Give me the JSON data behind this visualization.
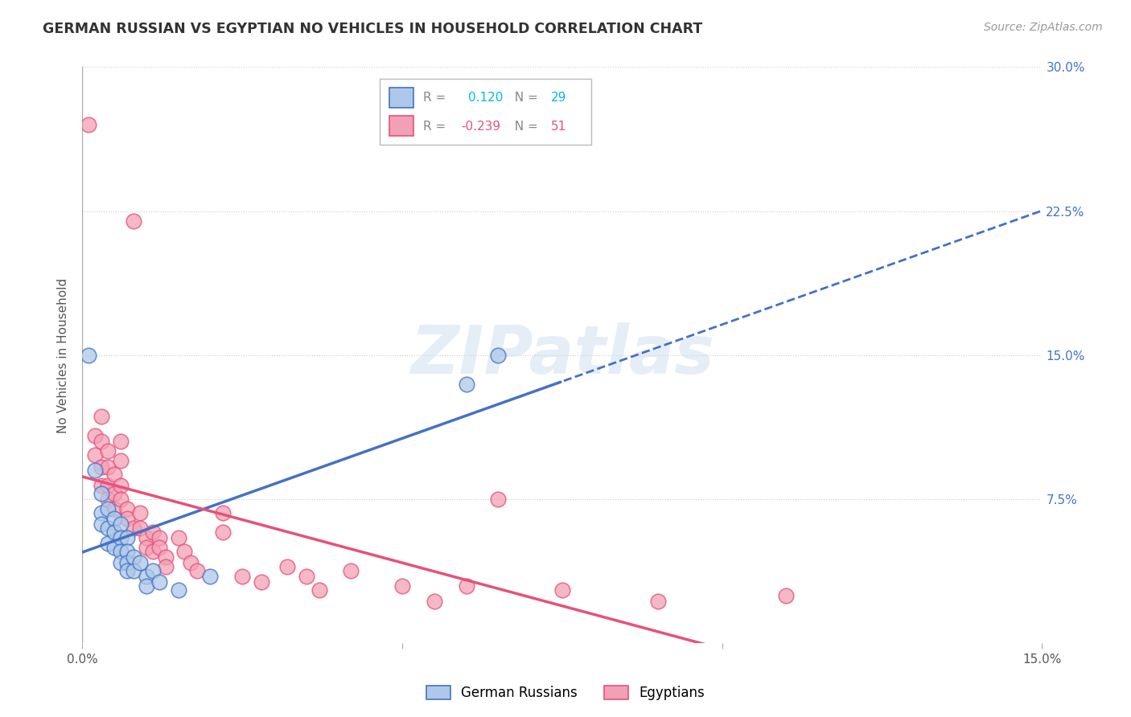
{
  "title": "GERMAN RUSSIAN VS EGYPTIAN NO VEHICLES IN HOUSEHOLD CORRELATION CHART",
  "source": "Source: ZipAtlas.com",
  "ylabel": "No Vehicles in Household",
  "xlim": [
    0.0,
    0.15
  ],
  "ylim": [
    0.0,
    0.3
  ],
  "blue_color": "#adc8e8",
  "pink_color": "#f2a0b5",
  "line_blue": "#4472c4",
  "line_pink": "#e8507a",
  "blue_points": [
    [
      0.001,
      0.15
    ],
    [
      0.002,
      0.09
    ],
    [
      0.003,
      0.078
    ],
    [
      0.003,
      0.068
    ],
    [
      0.003,
      0.062
    ],
    [
      0.004,
      0.07
    ],
    [
      0.004,
      0.06
    ],
    [
      0.004,
      0.052
    ],
    [
      0.005,
      0.065
    ],
    [
      0.005,
      0.058
    ],
    [
      0.005,
      0.05
    ],
    [
      0.006,
      0.062
    ],
    [
      0.006,
      0.055
    ],
    [
      0.006,
      0.048
    ],
    [
      0.006,
      0.042
    ],
    [
      0.007,
      0.055
    ],
    [
      0.007,
      0.048
    ],
    [
      0.007,
      0.042
    ],
    [
      0.007,
      0.038
    ],
    [
      0.008,
      0.045
    ],
    [
      0.008,
      0.038
    ],
    [
      0.009,
      0.042
    ],
    [
      0.01,
      0.035
    ],
    [
      0.01,
      0.03
    ],
    [
      0.011,
      0.038
    ],
    [
      0.012,
      0.032
    ],
    [
      0.015,
      0.028
    ],
    [
      0.02,
      0.035
    ],
    [
      0.06,
      0.135
    ],
    [
      0.065,
      0.15
    ]
  ],
  "pink_points": [
    [
      0.001,
      0.27
    ],
    [
      0.002,
      0.108
    ],
    [
      0.002,
      0.098
    ],
    [
      0.003,
      0.118
    ],
    [
      0.003,
      0.105
    ],
    [
      0.003,
      0.092
    ],
    [
      0.003,
      0.082
    ],
    [
      0.004,
      0.1
    ],
    [
      0.004,
      0.092
    ],
    [
      0.004,
      0.082
    ],
    [
      0.004,
      0.075
    ],
    [
      0.005,
      0.088
    ],
    [
      0.005,
      0.078
    ],
    [
      0.005,
      0.07
    ],
    [
      0.006,
      0.105
    ],
    [
      0.006,
      0.095
    ],
    [
      0.006,
      0.082
    ],
    [
      0.006,
      0.075
    ],
    [
      0.007,
      0.07
    ],
    [
      0.007,
      0.065
    ],
    [
      0.008,
      0.22
    ],
    [
      0.008,
      0.06
    ],
    [
      0.009,
      0.068
    ],
    [
      0.009,
      0.06
    ],
    [
      0.01,
      0.055
    ],
    [
      0.01,
      0.05
    ],
    [
      0.011,
      0.058
    ],
    [
      0.011,
      0.048
    ],
    [
      0.012,
      0.055
    ],
    [
      0.012,
      0.05
    ],
    [
      0.013,
      0.045
    ],
    [
      0.013,
      0.04
    ],
    [
      0.015,
      0.055
    ],
    [
      0.016,
      0.048
    ],
    [
      0.017,
      0.042
    ],
    [
      0.018,
      0.038
    ],
    [
      0.022,
      0.068
    ],
    [
      0.022,
      0.058
    ],
    [
      0.025,
      0.035
    ],
    [
      0.028,
      0.032
    ],
    [
      0.032,
      0.04
    ],
    [
      0.035,
      0.035
    ],
    [
      0.037,
      0.028
    ],
    [
      0.042,
      0.038
    ],
    [
      0.05,
      0.03
    ],
    [
      0.055,
      0.022
    ],
    [
      0.06,
      0.03
    ],
    [
      0.065,
      0.075
    ],
    [
      0.075,
      0.028
    ],
    [
      0.09,
      0.022
    ],
    [
      0.11,
      0.025
    ]
  ]
}
